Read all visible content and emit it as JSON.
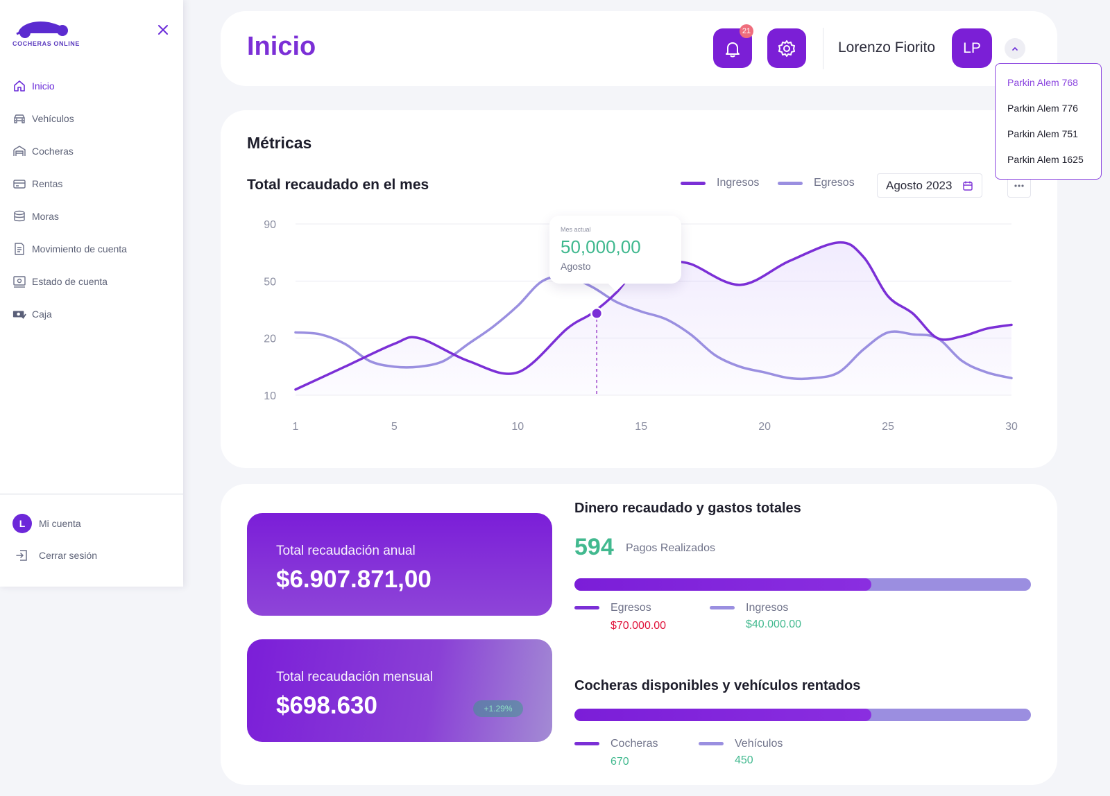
{
  "brand": {
    "logo_text": "COCHERAS ONLINE"
  },
  "sidebar": {
    "items": [
      {
        "label": "Inicio",
        "icon": "home-icon",
        "active": true
      },
      {
        "label": "Vehículos",
        "icon": "car-icon",
        "active": false
      },
      {
        "label": "Cocheras",
        "icon": "garage-icon",
        "active": false
      },
      {
        "label": "Rentas",
        "icon": "card-icon",
        "active": false
      },
      {
        "label": "Moras",
        "icon": "database-icon",
        "active": false
      },
      {
        "label": "Movimiento de cuenta",
        "icon": "document-icon",
        "active": false
      },
      {
        "label": "Estado de cuenta",
        "icon": "statement-icon",
        "active": false
      },
      {
        "label": "Caja",
        "icon": "cash-icon",
        "active": false
      }
    ],
    "account": {
      "initial": "L",
      "label": "Mi cuenta"
    },
    "logout": {
      "label": "Cerrar sesión"
    }
  },
  "header": {
    "title": "Inicio",
    "notifications_count": "21",
    "user_name": "Lorenzo Fiorito",
    "user_initials": "LP"
  },
  "dropdown": {
    "options": [
      "Parkin Alem 768",
      "Parkin Alem 776",
      "Parkin Alem 751",
      "Parkin Alem 1625"
    ],
    "selected_index": 0
  },
  "metrics": {
    "title": "Métricas",
    "chart_title": "Total recaudado en el mes",
    "legend": {
      "ingresos": "Ingresos",
      "egresos": "Egresos"
    },
    "date": "Agosto 2023",
    "tooltip": {
      "label": "Mes actual",
      "value": "50,000,00",
      "month": "Agosto"
    }
  },
  "chart_data": {
    "type": "line",
    "title": "Total recaudado en el mes",
    "y_ticks": [
      90,
      50,
      20,
      10
    ],
    "x_ticks": [
      1,
      5,
      10,
      15,
      20,
      25,
      30
    ],
    "xlim": [
      1,
      30
    ],
    "grid": true,
    "legend_position": "top-right",
    "series": [
      {
        "name": "Ingresos",
        "color": "#7b2fd6",
        "x": [
          1,
          3,
          5,
          6,
          8,
          10,
          12,
          13,
          14,
          15,
          16,
          17,
          19,
          21,
          23,
          24,
          25,
          26,
          27,
          28,
          29,
          30
        ],
        "y": [
          11,
          15,
          19,
          20,
          16,
          14,
          25,
          33,
          44,
          62,
          63,
          62,
          48,
          64,
          77,
          67,
          42,
          33,
          20,
          21,
          25,
          27
        ]
      },
      {
        "name": "Egresos",
        "color": "#9a8fe0",
        "x": [
          1,
          2,
          3,
          4,
          5,
          6,
          7,
          8,
          9,
          10,
          11,
          12,
          13,
          14,
          15,
          16,
          17,
          18,
          19,
          20,
          21,
          22,
          23,
          24,
          25,
          26,
          27,
          28,
          29,
          30
        ],
        "y": [
          23,
          22,
          19,
          16,
          15,
          15,
          16,
          19,
          26,
          37,
          50,
          53,
          47,
          39,
          34,
          30,
          22,
          17,
          15,
          14,
          13,
          13,
          14,
          18,
          23,
          22,
          20,
          16,
          14,
          13
        ]
      }
    ],
    "highlight": {
      "x": 13.2,
      "y": 33
    }
  },
  "stats": {
    "annual": {
      "label": "Total recaudación anual",
      "value": "$6.907.871,00"
    },
    "monthly": {
      "label": "Total recaudación mensual",
      "value": "$698.630",
      "change": "+1.29%"
    }
  },
  "money": {
    "title": "Dinero recaudado y gastos totales",
    "payments_count": "594",
    "payments_label": "Pagos Realizados",
    "progress": 0.65,
    "egresos": {
      "label": "Egresos",
      "value": "$70.000.00"
    },
    "ingresos": {
      "label": "Ingresos",
      "value": "$40.000.00"
    }
  },
  "garages": {
    "title": "Cocheras disponibles y vehículos rentados",
    "progress": 0.65,
    "cocheras": {
      "label": "Cocheras",
      "value": "670"
    },
    "vehiculos": {
      "label": "Vehículos",
      "value": "450"
    }
  },
  "colors": {
    "accent": "#7b1fd6",
    "ingresos_line": "#7b2fd6",
    "egresos_line": "#9a8fe0",
    "positive": "#42b98f",
    "negative": "#e0123a"
  }
}
